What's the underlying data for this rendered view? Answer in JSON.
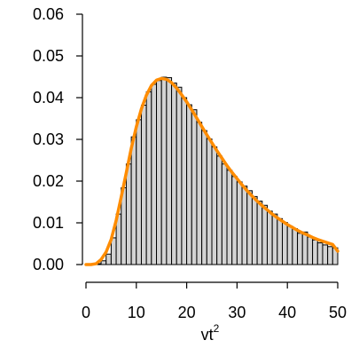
{
  "chart_data": {
    "type": "bar",
    "xlabel": {
      "base": "vt",
      "superscript": "2"
    },
    "ylabel": "",
    "xlim": [
      0,
      50
    ],
    "ylim": [
      0,
      0.06
    ],
    "xticks": [
      "0",
      "10",
      "20",
      "30",
      "40",
      "50"
    ],
    "yticks": [
      "0.00",
      "0.01",
      "0.02",
      "0.03",
      "0.04",
      "0.05",
      "0.06"
    ],
    "bin_width": 1,
    "histogram": {
      "bins_start": [
        0,
        1,
        2,
        3,
        4,
        5,
        6,
        7,
        8,
        9,
        10,
        11,
        12,
        13,
        14,
        15,
        16,
        17,
        18,
        19,
        20,
        21,
        22,
        23,
        24,
        25,
        26,
        27,
        28,
        29,
        30,
        31,
        32,
        33,
        34,
        35,
        36,
        37,
        38,
        39,
        40,
        41,
        42,
        43,
        44,
        45,
        46,
        47,
        48,
        49
      ],
      "density": [
        0.0,
        0.0,
        0.0002,
        0.0009,
        0.0025,
        0.0064,
        0.0121,
        0.0184,
        0.0241,
        0.0306,
        0.0347,
        0.0382,
        0.0414,
        0.0432,
        0.0441,
        0.0449,
        0.0448,
        0.0435,
        0.0425,
        0.04,
        0.0383,
        0.0371,
        0.0341,
        0.0321,
        0.0301,
        0.0282,
        0.026,
        0.0241,
        0.0226,
        0.0211,
        0.0198,
        0.0188,
        0.0177,
        0.0163,
        0.0152,
        0.0142,
        0.0128,
        0.0121,
        0.011,
        0.0101,
        0.0092,
        0.0086,
        0.0075,
        0.0078,
        0.0066,
        0.0059,
        0.0052,
        0.0047,
        0.0043,
        0.004
      ],
      "fill": "#d3d3d3",
      "stroke": "#000000"
    },
    "curve": {
      "x": [
        0,
        1,
        2,
        3,
        4,
        5,
        6,
        7,
        8,
        9,
        10,
        11,
        12,
        13,
        14,
        15,
        16,
        17,
        18,
        19,
        20,
        21,
        22,
        23,
        24,
        25,
        26,
        27,
        28,
        29,
        30,
        31,
        32,
        33,
        34,
        35,
        36,
        37,
        38,
        39,
        40,
        41,
        42,
        43,
        44,
        45,
        46,
        47,
        48,
        49,
        50
      ],
      "y": [
        0.0,
        0.0,
        0.0002,
        0.0012,
        0.003,
        0.006,
        0.0106,
        0.0162,
        0.022,
        0.0279,
        0.033,
        0.0373,
        0.0406,
        0.0429,
        0.0442,
        0.0446,
        0.0444,
        0.0436,
        0.0423,
        0.0407,
        0.039,
        0.0371,
        0.0351,
        0.0331,
        0.0311,
        0.0292,
        0.0273,
        0.0255,
        0.0237,
        0.0221,
        0.0206,
        0.0191,
        0.0177,
        0.0164,
        0.0152,
        0.0141,
        0.0131,
        0.0121,
        0.0112,
        0.0104,
        0.0096,
        0.0089,
        0.0082,
        0.0076,
        0.0071,
        0.0065,
        0.006,
        0.0056,
        0.0052,
        0.0048,
        0.0032
      ],
      "color": "#ff8c00"
    },
    "grid": false,
    "legend": "none"
  }
}
